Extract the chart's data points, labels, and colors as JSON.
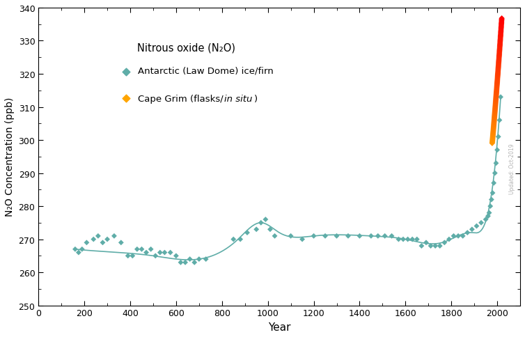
{
  "xlabel": "Year",
  "ylabel": "N₂O Concentration (ppb)",
  "xlim": [
    0,
    2100
  ],
  "ylim": [
    250,
    340
  ],
  "xticks": [
    0,
    200,
    400,
    600,
    800,
    1000,
    1200,
    1400,
    1600,
    1800,
    2000
  ],
  "yticks": [
    250,
    260,
    270,
    280,
    290,
    300,
    310,
    320,
    330,
    340
  ],
  "teal_color": "#5FADA8",
  "cape_grim_color_start": "#FFA500",
  "cape_grim_color_end": "#FF0000",
  "watermark": "Updated: Oct-2019",
  "antarctic_x": [
    160,
    175,
    190,
    210,
    240,
    260,
    280,
    300,
    330,
    360,
    390,
    410,
    430,
    450,
    470,
    490,
    510,
    530,
    550,
    575,
    600,
    620,
    640,
    660,
    680,
    700,
    730,
    850,
    880,
    910,
    950,
    970,
    990,
    1010,
    1030,
    1100,
    1150,
    1200,
    1250,
    1300,
    1350,
    1400,
    1450,
    1480,
    1510,
    1540,
    1570,
    1590,
    1610,
    1630,
    1650,
    1670,
    1690,
    1710,
    1730,
    1750,
    1770,
    1790,
    1810,
    1830,
    1850,
    1870,
    1890,
    1910,
    1930,
    1950,
    1960,
    1965,
    1970,
    1975,
    1980,
    1985,
    1990,
    1995,
    2000,
    2005,
    2010,
    2015
  ],
  "antarctic_y": [
    267,
    266,
    267,
    269,
    270,
    271,
    269,
    270,
    271,
    269,
    265,
    265,
    267,
    267,
    266,
    267,
    265,
    266,
    266,
    266,
    265,
    263,
    263,
    264,
    263,
    264,
    264,
    270,
    270,
    272,
    273,
    275,
    276,
    273,
    271,
    271,
    270,
    271,
    271,
    271,
    271,
    271,
    271,
    271,
    271,
    271,
    270,
    270,
    270,
    270,
    270,
    268,
    269,
    268,
    268,
    268,
    269,
    270,
    271,
    271,
    271,
    272,
    273,
    274,
    275,
    276,
    277,
    278,
    280,
    282,
    284,
    287,
    290,
    293,
    297,
    301,
    306,
    313
  ],
  "smooth_x_nodes": [
    160,
    350,
    500,
    700,
    870,
    970,
    1050,
    1200,
    1450,
    1600,
    1760,
    1890,
    1960,
    2015
  ],
  "smooth_y_nodes": [
    267,
    266,
    265,
    264,
    270,
    275,
    272,
    271,
    271,
    270,
    269,
    272,
    278,
    313
  ],
  "legend_title": "Nitrous oxide (N₂O)",
  "legend_label1": "Antarctic (Law Dome) ice/firn",
  "legend_label2_pre": "Cape Grim (flasks/",
  "legend_label2_italic": "in situ",
  "legend_label2_post": ")"
}
